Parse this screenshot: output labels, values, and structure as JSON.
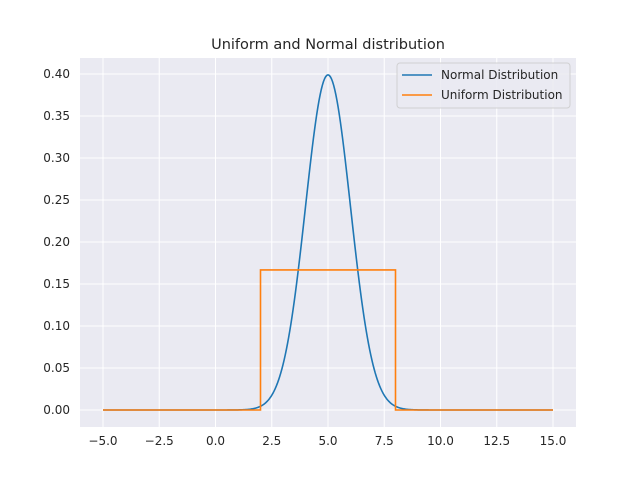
{
  "chart_data": {
    "type": "line",
    "title": "Uniform and Normal distribution",
    "xlabel": "",
    "ylabel": "",
    "xlim": [
      -5.0,
      15.0
    ],
    "ylim": [
      0.0,
      0.4
    ],
    "x_ticks": [
      -5.0,
      -2.5,
      0.0,
      2.5,
      5.0,
      7.5,
      10.0,
      12.5,
      15.0
    ],
    "x_tick_labels": [
      "−5.0",
      "−2.5",
      "0.0",
      "2.5",
      "5.0",
      "7.5",
      "10.0",
      "12.5",
      "15.0"
    ],
    "y_ticks": [
      0.0,
      0.05,
      0.1,
      0.15,
      0.2,
      0.25,
      0.3,
      0.35,
      0.4
    ],
    "y_tick_labels": [
      "0.00",
      "0.05",
      "0.10",
      "0.15",
      "0.20",
      "0.25",
      "0.30",
      "0.35",
      "0.40"
    ],
    "grid": true,
    "legend_position": "top-right",
    "series": [
      {
        "name": "Normal Distribution",
        "color": "#1f77b4",
        "distribution": "normal",
        "mean": 5.0,
        "std": 1.0,
        "x_range": [
          -5.0,
          15.0
        ]
      },
      {
        "name": "Uniform Distribution",
        "color": "#ff7f0e",
        "distribution": "uniform",
        "x": [
          -5.0,
          2.0,
          2.0,
          8.0,
          8.0,
          15.0
        ],
        "y": [
          0.0,
          0.0,
          0.1667,
          0.1667,
          0.0,
          0.0
        ]
      }
    ]
  }
}
